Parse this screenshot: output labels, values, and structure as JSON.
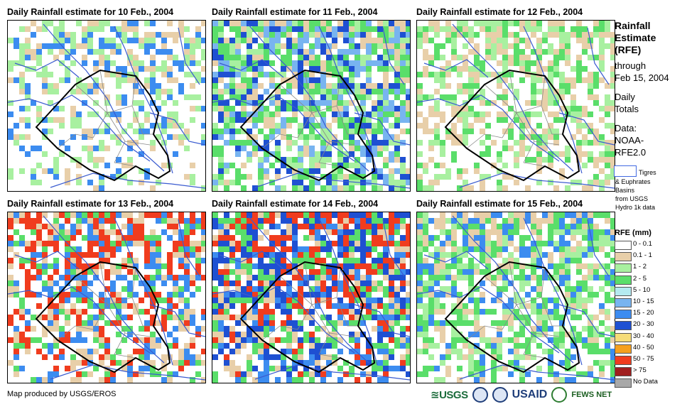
{
  "panels": [
    {
      "title": "Daily Rainfall estimate for 10 Feb., 2004"
    },
    {
      "title": "Daily Rainfall estimate for 11 Feb., 2004"
    },
    {
      "title": "Daily Rainfall estimate for 12 Feb., 2004"
    },
    {
      "title": "Daily Rainfall estimate for 13 Feb., 2004"
    },
    {
      "title": "Daily Rainfall estimate for 14 Feb., 2004"
    },
    {
      "title": "Daily Rainfall estimate for 15 Feb., 2004"
    }
  ],
  "legend": {
    "title_line1": "Rainfall",
    "title_line2": "Estimate",
    "title_line3": "(RFE)",
    "through": "through",
    "date": "Feb 15, 2004",
    "daily": "Daily",
    "totals": "Totals",
    "data_label": "Data:",
    "data_src1": "NOAA-",
    "data_src2": "RFE2.0",
    "basin_line1": "Tigres",
    "basin_line2": "& Euphrates",
    "basin_line3": "Basins",
    "basin_line4": "from USGS",
    "basin_line5": "Hydro 1k data",
    "rfe_title": "RFE (mm)",
    "classes": [
      {
        "label": "0 - 0.1",
        "color": "#ffffff"
      },
      {
        "label": "0.1 - 1",
        "color": "#e8cfa9"
      },
      {
        "label": "1 - 2",
        "color": "#a8f0a0"
      },
      {
        "label": "2 - 5",
        "color": "#5ade6a"
      },
      {
        "label": "5 - 10",
        "color": "#b4eaf0"
      },
      {
        "label": "10 - 15",
        "color": "#78b4f0"
      },
      {
        "label": "15 - 20",
        "color": "#3c8cf0"
      },
      {
        "label": "20 - 30",
        "color": "#1e50d2"
      },
      {
        "label": "30 - 40",
        "color": "#f5dc78"
      },
      {
        "label": "40 - 50",
        "color": "#f5a01e"
      },
      {
        "label": "50 - 75",
        "color": "#f03c1e"
      },
      {
        "label": "> 75",
        "color": "#a01e1e"
      },
      {
        "label": "No Data",
        "color": "#a8a8a8"
      }
    ]
  },
  "footer": "Map produced by USGS/EROS",
  "logos": {
    "usgs": "≊USGS",
    "usaid": "USAID",
    "fews": "FEWS NET"
  }
}
